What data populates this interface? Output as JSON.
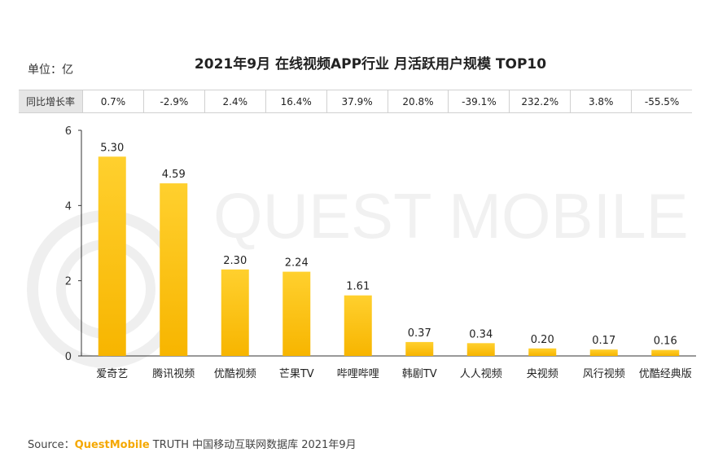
{
  "header": {
    "unit_label": "单位：亿",
    "title": "2021年9月 在线视频APP行业 月活跃用户规模 TOP10"
  },
  "growth": {
    "label": "同比增长率",
    "values": [
      "0.7%",
      "-2.9%",
      "2.4%",
      "16.4%",
      "37.9%",
      "20.8%",
      "-39.1%",
      "232.2%",
      "3.8%",
      "-55.5%"
    ]
  },
  "watermark": "QUEST MOBILE",
  "chart_data": {
    "type": "bar",
    "categories": [
      "爱奇艺",
      "腾讯视频",
      "优酷视频",
      "芒果TV",
      "哔哩哔哩",
      "韩剧TV",
      "人人视频",
      "央视频",
      "风行视频",
      "优酷经典版"
    ],
    "values": [
      5.3,
      4.59,
      2.3,
      2.24,
      1.61,
      0.37,
      0.34,
      0.2,
      0.17,
      0.16
    ],
    "value_labels": [
      "5.30",
      "4.59",
      "2.30",
      "2.24",
      "1.61",
      "0.37",
      "0.34",
      "0.20",
      "0.17",
      "0.16"
    ],
    "ylim": [
      0,
      6
    ],
    "yticks": [
      0,
      2,
      4,
      6
    ],
    "grid": false,
    "bar_color": "#ffc21a"
  },
  "source": {
    "prefix": "Source：",
    "brand": "QuestMobile",
    "rest": " TRUTH 中国移动互联网数据库 2021年9月"
  }
}
